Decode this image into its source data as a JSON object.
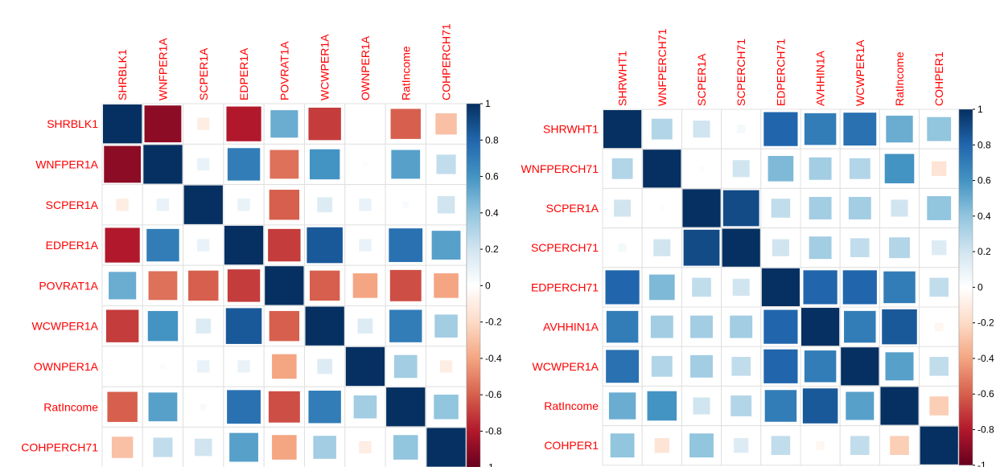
{
  "chart_data": [
    {
      "type": "heatmap",
      "title": "",
      "method": "square",
      "variables": [
        "SHRBLK1",
        "WNFPER1A",
        "SCPER1A",
        "EDPER1A",
        "POVRAT1A",
        "WCWPER1A",
        "OWNPER1A",
        "RatIncome",
        "COHPERCH71"
      ],
      "matrix": [
        [
          1.0,
          -0.9,
          -0.1,
          -0.8,
          0.5,
          -0.7,
          0.0,
          -0.6,
          -0.3
        ],
        [
          -0.9,
          1.0,
          0.1,
          0.7,
          -0.55,
          0.6,
          0.02,
          0.55,
          0.25
        ],
        [
          -0.1,
          0.1,
          1.0,
          0.1,
          -0.6,
          0.15,
          0.1,
          0.03,
          0.2
        ],
        [
          -0.8,
          0.7,
          0.1,
          1.0,
          -0.7,
          0.85,
          0.1,
          0.75,
          0.55
        ],
        [
          0.5,
          -0.55,
          -0.6,
          -0.7,
          1.0,
          -0.6,
          -0.4,
          -0.65,
          -0.4
        ],
        [
          -0.7,
          0.6,
          0.15,
          0.85,
          -0.6,
          1.0,
          0.15,
          0.7,
          0.35
        ],
        [
          0.0,
          0.02,
          0.1,
          0.1,
          -0.4,
          0.15,
          1.0,
          0.35,
          -0.1
        ],
        [
          -0.6,
          0.55,
          0.03,
          0.75,
          -0.65,
          0.7,
          0.35,
          1.0,
          0.4
        ],
        [
          -0.3,
          0.25,
          0.2,
          0.55,
          -0.4,
          0.35,
          -0.1,
          0.4,
          1.0
        ]
      ],
      "colorbar": {
        "ticks": [
          "1",
          "0.8",
          "0.6",
          "0.4",
          "0.2",
          "0",
          "-0.2",
          "-0.4",
          "-0.6",
          "-0.8",
          "-1"
        ],
        "range": [
          -1,
          1
        ]
      },
      "label_color": "#ff0000",
      "grid": true
    },
    {
      "type": "heatmap",
      "title": "",
      "method": "square",
      "variables": [
        "SHRWHT1",
        "WNFPERCH71",
        "SCPER1A",
        "SCPERCH71",
        "EDPERCH71",
        "AVHHIN1A",
        "WCWPER1A",
        "RatIncome",
        "COHPER1"
      ],
      "matrix": [
        [
          1.0,
          0.3,
          0.2,
          0.05,
          0.8,
          0.7,
          0.75,
          0.5,
          0.4
        ],
        [
          0.3,
          1.0,
          0.02,
          0.2,
          0.45,
          0.35,
          0.3,
          0.6,
          -0.15
        ],
        [
          0.2,
          0.02,
          1.0,
          0.9,
          0.25,
          0.35,
          0.35,
          0.2,
          0.4
        ],
        [
          0.05,
          0.2,
          0.9,
          1.0,
          0.2,
          0.35,
          0.25,
          0.3,
          0.15
        ],
        [
          0.8,
          0.45,
          0.25,
          0.2,
          1.0,
          0.8,
          0.8,
          0.7,
          0.25
        ],
        [
          0.7,
          0.35,
          0.35,
          0.35,
          0.8,
          1.0,
          0.7,
          0.85,
          -0.05
        ],
        [
          0.75,
          0.3,
          0.35,
          0.25,
          0.8,
          0.7,
          1.0,
          0.55,
          0.25
        ],
        [
          0.5,
          0.6,
          0.2,
          0.3,
          0.7,
          0.85,
          0.55,
          1.0,
          -0.25
        ],
        [
          0.4,
          -0.15,
          0.4,
          0.15,
          0.25,
          -0.05,
          0.25,
          -0.25,
          1.0
        ]
      ],
      "colorbar": {
        "ticks": [
          "1",
          "0.8",
          "0.6",
          "0.4",
          "0.2",
          "0",
          "-0.2",
          "-0.4",
          "-0.6",
          "-0.8",
          "-1"
        ],
        "range": [
          -1,
          1
        ]
      },
      "label_color": "#ff0000",
      "grid": true
    }
  ]
}
